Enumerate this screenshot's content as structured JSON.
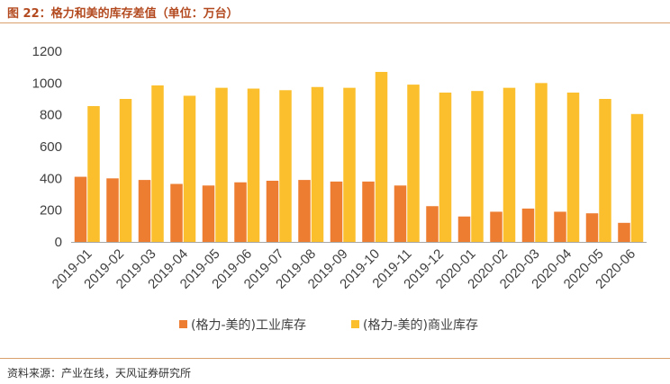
{
  "figure": {
    "title": "图 22：格力和美的库存差值（单位：万台）",
    "source": "资料来源：产业在线，天风证券研究所"
  },
  "colors": {
    "title_text": "#b34a1f",
    "rule": "#d9a06b",
    "series_industrial": "#ed7d31",
    "series_commercial": "#fbbf2d",
    "axis": "#a6a6a6"
  },
  "chart_data": {
    "type": "bar",
    "categories": [
      "2019-01",
      "2019-02",
      "2019-03",
      "2019-04",
      "2019-05",
      "2019-06",
      "2019-07",
      "2019-08",
      "2019-09",
      "2019-10",
      "2019-11",
      "2019-12",
      "2020-01",
      "2020-02",
      "2020-03",
      "2020-04",
      "2020-05",
      "2020-06"
    ],
    "series": [
      {
        "name": "(格力-美的)工业库存",
        "color": "#ed7d31",
        "values": [
          410,
          400,
          390,
          365,
          355,
          375,
          385,
          390,
          380,
          380,
          355,
          225,
          160,
          190,
          210,
          190,
          180,
          120
        ]
      },
      {
        "name": "(格力-美的)商业库存",
        "color": "#fbbf2d",
        "values": [
          855,
          900,
          985,
          920,
          970,
          965,
          955,
          975,
          970,
          1070,
          990,
          940,
          950,
          970,
          1000,
          940,
          900,
          805
        ]
      }
    ],
    "ylim": [
      0,
      1200
    ],
    "yticks": [
      0,
      200,
      400,
      600,
      800,
      1000,
      1200
    ],
    "grid": false,
    "legend_position": "bottom"
  }
}
